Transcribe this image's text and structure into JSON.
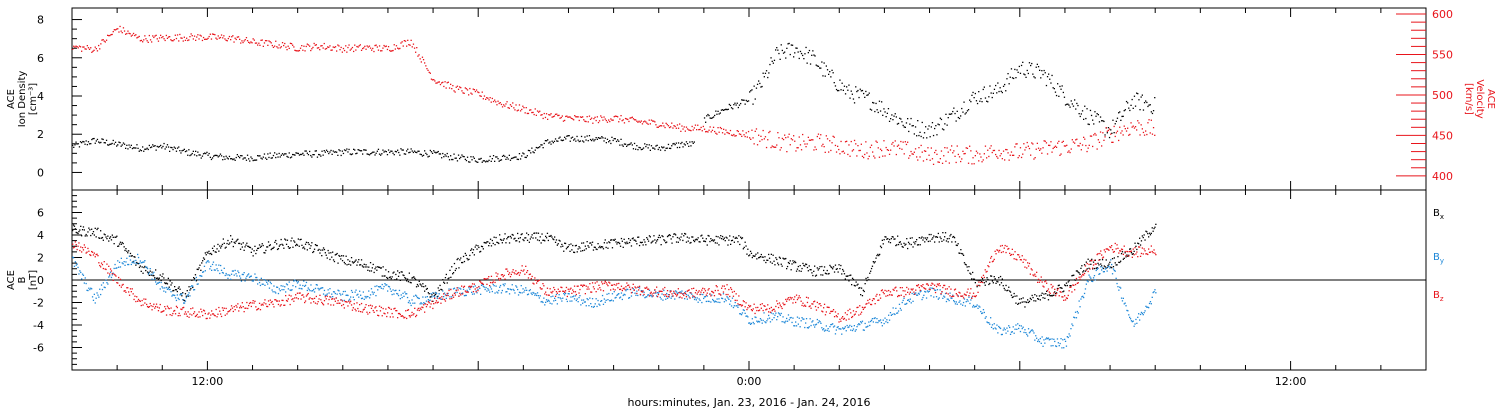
{
  "colors": {
    "black": "#000000",
    "red": "#e8141b",
    "blue": "#1e88d8",
    "frame": "#000000"
  },
  "x_axis": {
    "label": "hours:minutes, Jan. 23, 2016 - Jan. 24, 2016",
    "unit": "hours relative to 2016-01-24 00:00",
    "range": [
      -15,
      15
    ],
    "data_end": 9,
    "tick_labels": [
      {
        "t": -12,
        "label": "12:00"
      },
      {
        "t": 0,
        "label": "0:00"
      },
      {
        "t": 12,
        "label": "12:00"
      }
    ]
  },
  "chart_data": [
    {
      "type": "scatter",
      "panel": "top",
      "ylabel_left": [
        "ACE",
        "Ion Density",
        "[cm⁻³]"
      ],
      "ylabel_right": [
        "ACE",
        "Velocity",
        "[km/s]"
      ],
      "ylim_left": [
        -0.5,
        8.5
      ],
      "ylim_right": [
        385,
        605
      ],
      "left_ticks": [
        0,
        2,
        4,
        6,
        8
      ],
      "right_ticks": [
        400,
        450,
        500,
        550,
        600
      ],
      "series": [
        {
          "axis": "left",
          "color": "black",
          "points": [
            [
              -15,
              1.4
            ],
            [
              -14.5,
              1.7
            ],
            [
              -14,
              1.5
            ],
            [
              -13.5,
              1.3
            ],
            [
              -13,
              1.4
            ],
            [
              -12.5,
              1.1
            ],
            [
              -12,
              0.9
            ],
            [
              -11.5,
              0.8
            ],
            [
              -11,
              0.8
            ],
            [
              -10.5,
              0.9
            ],
            [
              -10,
              1.0
            ],
            [
              -9.5,
              1.0
            ],
            [
              -9,
              1.1
            ],
            [
              -8.5,
              1.1
            ],
            [
              -8,
              1.1
            ],
            [
              -7.5,
              1.1
            ],
            [
              -7,
              1.0
            ],
            [
              -6.5,
              0.8
            ],
            [
              -6,
              0.7
            ],
            [
              -5.5,
              0.8
            ],
            [
              -5,
              0.9
            ],
            [
              -4.5,
              1.6
            ],
            [
              -4,
              1.8
            ],
            [
              -3.5,
              1.8
            ],
            [
              -3,
              1.7
            ],
            [
              -2.5,
              1.4
            ],
            [
              -2,
              1.3
            ],
            [
              -1.5,
              1.5
            ],
            [
              -1.2,
              1.5
            ],
            [
              -1,
              2.8
            ],
            [
              -0.5,
              3.4
            ],
            [
              0,
              3.8
            ],
            [
              0.3,
              4.8
            ],
            [
              0.6,
              6.2
            ],
            [
              1,
              6.5
            ],
            [
              1.4,
              6.0
            ],
            [
              1.8,
              5.0
            ],
            [
              2.2,
              4.2
            ],
            [
              2.6,
              3.9
            ],
            [
              3,
              3.3
            ],
            [
              3.5,
              2.5
            ],
            [
              4,
              2.2
            ],
            [
              4.5,
              3.0
            ],
            [
              5,
              4.0
            ],
            [
              5.5,
              4.3
            ],
            [
              6,
              5.5
            ],
            [
              6.5,
              5.2
            ],
            [
              7,
              4.0
            ],
            [
              7.5,
              3.0
            ],
            [
              8,
              2.2
            ],
            [
              8.5,
              3.8
            ],
            [
              9,
              3.5
            ]
          ]
        },
        {
          "axis": "right",
          "color": "red",
          "points": [
            [
              -15,
              560
            ],
            [
              -14.5,
              557
            ],
            [
              -14,
              583
            ],
            [
              -13.5,
              570
            ],
            [
              -13,
              571
            ],
            [
              -12.5,
              572
            ],
            [
              -12,
              572
            ],
            [
              -11.5,
              571
            ],
            [
              -11,
              566
            ],
            [
              -10.5,
              563
            ],
            [
              -10,
              559
            ],
            [
              -9.5,
              561
            ],
            [
              -9,
              558
            ],
            [
              -8.5,
              559
            ],
            [
              -8,
              558
            ],
            [
              -7.5,
              567
            ],
            [
              -7,
              520
            ],
            [
              -6.5,
              508
            ],
            [
              -6,
              502
            ],
            [
              -5.5,
              490
            ],
            [
              -5,
              483
            ],
            [
              -4.5,
              475
            ],
            [
              -4,
              472
            ],
            [
              -3.5,
              470
            ],
            [
              -3,
              472
            ],
            [
              -2.5,
              468
            ],
            [
              -2,
              465
            ],
            [
              -1.5,
              460
            ],
            [
              -1,
              459
            ],
            [
              -0.5,
              455
            ],
            [
              0,
              452
            ],
            [
              0.5,
              445
            ],
            [
              1,
              440
            ],
            [
              1.5,
              442
            ],
            [
              2,
              438
            ],
            [
              2.5,
              432
            ],
            [
              3,
              436
            ],
            [
              3.5,
              432
            ],
            [
              4,
              425
            ],
            [
              4.5,
              428
            ],
            [
              5,
              426
            ],
            [
              5.5,
              432
            ],
            [
              6,
              430
            ],
            [
              6.5,
              434
            ],
            [
              7,
              437
            ],
            [
              7.5,
              440
            ],
            [
              8,
              452
            ],
            [
              8.5,
              462
            ],
            [
              9,
              458
            ]
          ]
        }
      ]
    },
    {
      "type": "scatter",
      "panel": "bottom",
      "ylabel_left": [
        "ACE",
        "B",
        "[nT]"
      ],
      "ylim": [
        -8,
        8
      ],
      "left_ticks": [
        -6,
        -4,
        -2,
        0,
        2,
        4,
        6
      ],
      "zero_line": true,
      "legend": {
        "placement": "right",
        "entries": [
          {
            "label": "B",
            "sub": "x",
            "color": "black"
          },
          {
            "label": "B",
            "sub": "y",
            "color": "blue"
          },
          {
            "label": "B",
            "sub": "z",
            "color": "red"
          }
        ]
      },
      "series": [
        {
          "name": "Bx",
          "color": "black",
          "points": [
            [
              -15,
              4.5
            ],
            [
              -14.5,
              4.3
            ],
            [
              -14,
              3.5
            ],
            [
              -13.5,
              1.2
            ],
            [
              -13,
              0.3
            ],
            [
              -12.5,
              -1.5
            ],
            [
              -12,
              2.5
            ],
            [
              -11.5,
              3.6
            ],
            [
              -11,
              2.6
            ],
            [
              -10.5,
              3.2
            ],
            [
              -10,
              3.4
            ],
            [
              -9.5,
              2.6
            ],
            [
              -9,
              1.8
            ],
            [
              -8.5,
              1.4
            ],
            [
              -8,
              0.6
            ],
            [
              -7.5,
              0.2
            ],
            [
              -7,
              -1.5
            ],
            [
              -6.5,
              1.4
            ],
            [
              -6,
              2.9
            ],
            [
              -5.5,
              3.7
            ],
            [
              -5,
              3.8
            ],
            [
              -4.5,
              3.8
            ],
            [
              -4,
              2.8
            ],
            [
              -3.5,
              3.1
            ],
            [
              -3,
              3.3
            ],
            [
              -2.5,
              3.5
            ],
            [
              -2,
              3.6
            ],
            [
              -1.5,
              3.8
            ],
            [
              -1,
              3.6
            ],
            [
              -0.5,
              3.6
            ],
            [
              -0.2,
              3.6
            ],
            [
              0,
              2.4
            ],
            [
              0.5,
              1.9
            ],
            [
              1,
              1.3
            ],
            [
              1.5,
              0.8
            ],
            [
              2,
              1.0
            ],
            [
              2.5,
              -1.0
            ],
            [
              3,
              3.8
            ],
            [
              3.5,
              3.3
            ],
            [
              4,
              3.9
            ],
            [
              4.5,
              3.8
            ],
            [
              5,
              -0.2
            ],
            [
              5.5,
              0.2
            ],
            [
              6,
              -2.0
            ],
            [
              6.5,
              -1.5
            ],
            [
              7,
              -0.5
            ],
            [
              7.5,
              1.5
            ],
            [
              8,
              1.5
            ],
            [
              8.5,
              2.7
            ],
            [
              9,
              5.0
            ]
          ]
        },
        {
          "name": "By",
          "color": "blue",
          "points": [
            [
              -15,
              1.8
            ],
            [
              -14.5,
              -1.7
            ],
            [
              -14,
              1.5
            ],
            [
              -13.5,
              2.0
            ],
            [
              -13,
              -0.8
            ],
            [
              -12.5,
              -1.7
            ],
            [
              -12,
              1.5
            ],
            [
              -11.5,
              0.5
            ],
            [
              -11,
              0.3
            ],
            [
              -10.5,
              -0.8
            ],
            [
              -10,
              -0.3
            ],
            [
              -9.5,
              -0.9
            ],
            [
              -9,
              -1.4
            ],
            [
              -8.5,
              -1.2
            ],
            [
              -8,
              -0.6
            ],
            [
              -7.5,
              -1.8
            ],
            [
              -7,
              -1.5
            ],
            [
              -6.5,
              -1.0
            ],
            [
              -6,
              -0.8
            ],
            [
              -5.5,
              -0.7
            ],
            [
              -5,
              -0.9
            ],
            [
              -4.5,
              -1.8
            ],
            [
              -4,
              -1.5
            ],
            [
              -3.5,
              -2.0
            ],
            [
              -3,
              -1.4
            ],
            [
              -2.5,
              -1.0
            ],
            [
              -2,
              -1.3
            ],
            [
              -1.5,
              -1.2
            ],
            [
              -1,
              -1.6
            ],
            [
              -0.5,
              -1.5
            ],
            [
              0,
              -3.5
            ],
            [
              0.5,
              -3.2
            ],
            [
              1,
              -3.6
            ],
            [
              1.5,
              -3.9
            ],
            [
              2,
              -4.4
            ],
            [
              2.5,
              -4.0
            ],
            [
              3,
              -3.5
            ],
            [
              3.5,
              -1.7
            ],
            [
              4,
              -1.0
            ],
            [
              4.5,
              -1.6
            ],
            [
              5,
              -2.0
            ],
            [
              5.5,
              -4.5
            ],
            [
              6,
              -4.2
            ],
            [
              6.5,
              -5.4
            ],
            [
              7,
              -5.6
            ],
            [
              7.5,
              0.0
            ],
            [
              8,
              1.5
            ],
            [
              8.5,
              -4.0
            ],
            [
              9,
              -1.0
            ]
          ]
        },
        {
          "name": "Bz",
          "color": "red",
          "points": [
            [
              -15,
              3.4
            ],
            [
              -14.5,
              2.2
            ],
            [
              -14,
              0.0
            ],
            [
              -13.5,
              -1.8
            ],
            [
              -13,
              -2.6
            ],
            [
              -12.5,
              -2.8
            ],
            [
              -12,
              -3.0
            ],
            [
              -11.5,
              -2.6
            ],
            [
              -11,
              -2.2
            ],
            [
              -10.5,
              -2.0
            ],
            [
              -10,
              -1.5
            ],
            [
              -9.5,
              -1.7
            ],
            [
              -9,
              -2.0
            ],
            [
              -8.5,
              -2.5
            ],
            [
              -8,
              -2.8
            ],
            [
              -7.5,
              -3.0
            ],
            [
              -7,
              -2.0
            ],
            [
              -6.5,
              -1.0
            ],
            [
              -6,
              -0.5
            ],
            [
              -5.5,
              0.5
            ],
            [
              -5,
              1.0
            ],
            [
              -4.5,
              -1.0
            ],
            [
              -4,
              -1.0
            ],
            [
              -3.5,
              -0.6
            ],
            [
              -3,
              -0.4
            ],
            [
              -2.5,
              -0.8
            ],
            [
              -2,
              -1.0
            ],
            [
              -1.5,
              -1.2
            ],
            [
              -1,
              -1.0
            ],
            [
              -0.5,
              -0.8
            ],
            [
              0,
              -2.5
            ],
            [
              0.5,
              -2.4
            ],
            [
              1,
              -1.6
            ],
            [
              1.5,
              -2.2
            ],
            [
              2,
              -3.3
            ],
            [
              2.5,
              -2.5
            ],
            [
              3,
              -1.0
            ],
            [
              3.5,
              -1.0
            ],
            [
              4,
              -0.5
            ],
            [
              4.5,
              -1.0
            ],
            [
              5,
              -1.2
            ],
            [
              5.5,
              3.0
            ],
            [
              6,
              2.0
            ],
            [
              6.5,
              -0.3
            ],
            [
              7,
              -1.5
            ],
            [
              7.5,
              1.2
            ],
            [
              8,
              3.0
            ],
            [
              8.5,
              2.5
            ],
            [
              9,
              2.7
            ]
          ]
        }
      ]
    }
  ]
}
